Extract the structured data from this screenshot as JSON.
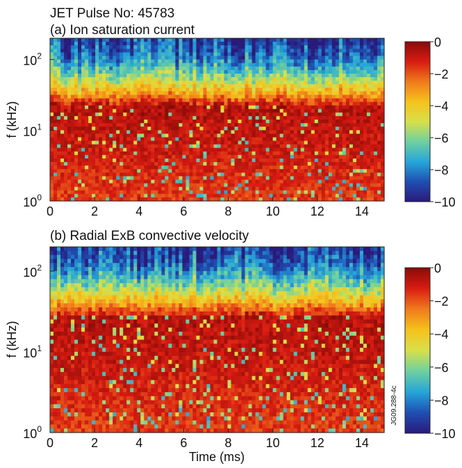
{
  "figure": {
    "header": "JET Pulse No: 45783",
    "xlabel": "Time (ms)",
    "ref_code": "JG09.288-4c"
  },
  "colorbar": {
    "ticks": [
      "0",
      "−2",
      "−4",
      "−6",
      "−8",
      "−10"
    ],
    "colors": [
      "#2a1a7a",
      "#1f4fb3",
      "#26a6d9",
      "#6fd0a0",
      "#d8e04a",
      "#f5c21b",
      "#f07a1d",
      "#d81c12",
      "#8a0b08"
    ]
  },
  "chart_data": [
    {
      "type": "heatmap",
      "title": "(a) Ion saturation current",
      "xlabel": "",
      "ylabel": "f (kHz)",
      "xlim": [
        0,
        15
      ],
      "ylim": [
        1,
        200
      ],
      "yscale": "log",
      "x_ticks": [
        "0",
        "2",
        "4",
        "6",
        "8",
        "10",
        "12",
        "14"
      ],
      "y_ticks": [
        {
          "base": "10",
          "exp": "0"
        },
        {
          "base": "10",
          "exp": "1"
        },
        {
          "base": "10",
          "exp": "2"
        }
      ],
      "colorbar_range": [
        -10,
        0
      ],
      "pattern": "broadband fluctuations: strongest (red, 0 to −2) between ~2 and ~15 kHz, decaying to blue (−8 to −10) above ~50 kHz"
    },
    {
      "type": "heatmap",
      "title": "(b) Radial ExB convective velocity",
      "xlabel": "Time (ms)",
      "ylabel": "f (kHz)",
      "xlim": [
        0,
        15
      ],
      "ylim": [
        1,
        200
      ],
      "yscale": "log",
      "x_ticks": [
        "0",
        "2",
        "4",
        "6",
        "8",
        "10",
        "12",
        "14"
      ],
      "y_ticks": [
        {
          "base": "10",
          "exp": "0"
        },
        {
          "base": "10",
          "exp": "1"
        },
        {
          "base": "10",
          "exp": "2"
        }
      ],
      "colorbar_range": [
        -10,
        0
      ],
      "pattern": "broadband fluctuations: strongest (red, 0 to −2) between ~1 and ~20 kHz, decaying to blue/green above ~50 kHz"
    }
  ]
}
